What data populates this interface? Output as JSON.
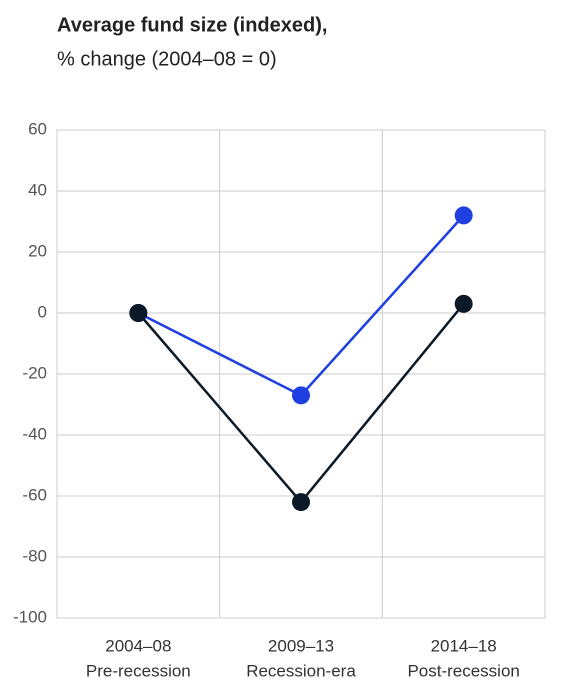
{
  "chart_data": {
    "type": "line",
    "title": "Average fund size (indexed),",
    "subtitle": "% change (2004–08 = 0)",
    "categories": [
      "2004–08",
      "2009–13",
      "2014–18"
    ],
    "category_sublabels": [
      "Pre-recession",
      "Recession-era",
      "Post-recession"
    ],
    "series": [
      {
        "color": "#1f3fe0",
        "values": [
          0,
          -27,
          32
        ]
      },
      {
        "color": "#0b1a26",
        "values": [
          0,
          -62,
          3
        ]
      }
    ],
    "ylim": [
      -100,
      60
    ],
    "yticks": [
      -100,
      -80,
      -60,
      -40,
      -20,
      0,
      20,
      40,
      60
    ],
    "grid": true
  }
}
